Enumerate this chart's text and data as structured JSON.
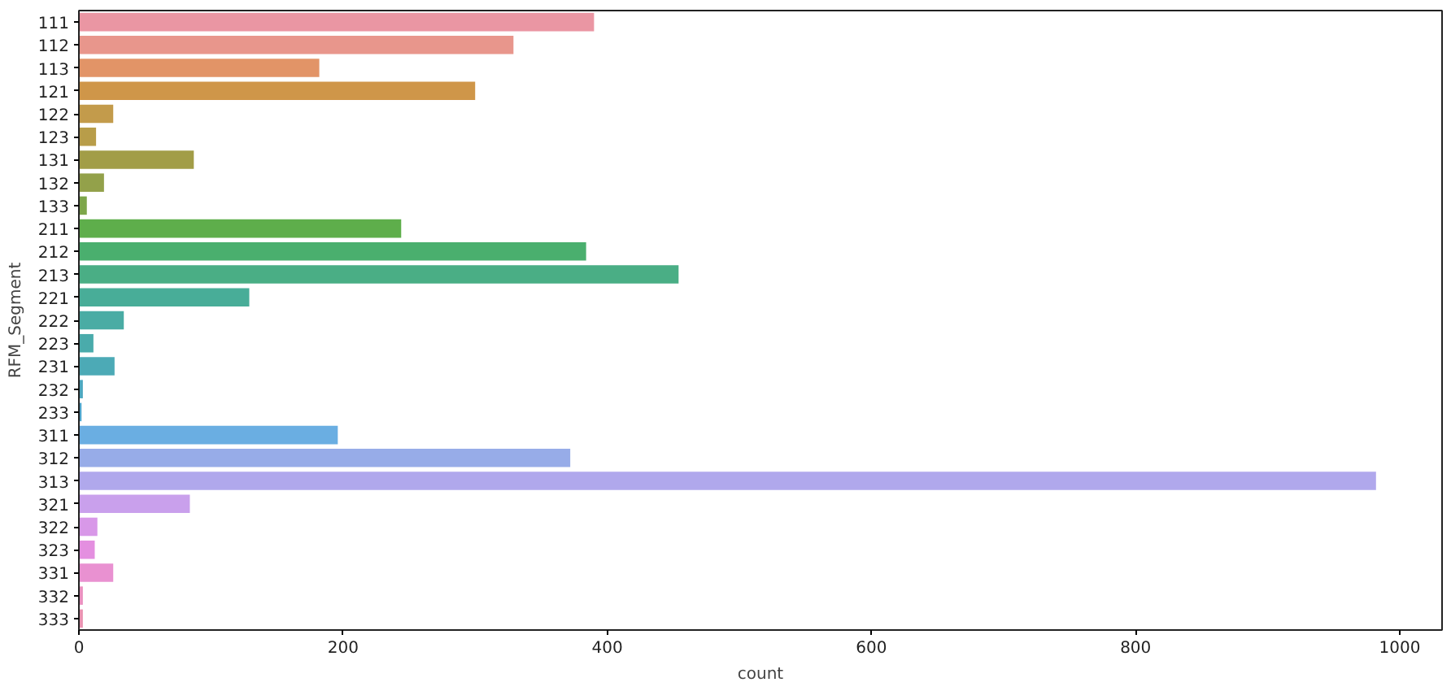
{
  "chart_data": {
    "type": "bar",
    "orientation": "horizontal",
    "xlabel": "count",
    "ylabel": "RFM_Segment",
    "categories": [
      "111",
      "112",
      "113",
      "121",
      "122",
      "123",
      "131",
      "132",
      "133",
      "211",
      "212",
      "213",
      "221",
      "222",
      "223",
      "231",
      "232",
      "233",
      "311",
      "312",
      "313",
      "321",
      "322",
      "323",
      "331",
      "332",
      "333"
    ],
    "values": [
      390,
      329,
      182,
      300,
      26,
      13,
      87,
      19,
      6,
      244,
      384,
      454,
      129,
      34,
      11,
      27,
      3,
      2,
      196,
      372,
      982,
      84,
      14,
      12,
      26,
      3,
      3
    ],
    "colors": [
      "#ea96a3",
      "#e8968c",
      "#e29467",
      "#cf9649",
      "#c39b4b",
      "#b89d49",
      "#a29d47",
      "#93a14a",
      "#7da64a",
      "#5eae4b",
      "#4aaf6e",
      "#4aae85",
      "#48ad98",
      "#4aaca4",
      "#4aabab",
      "#4caab6",
      "#4da8c0",
      "#4ea5cc",
      "#6aaee2",
      "#97ace8",
      "#b0a8ec",
      "#c9a0ec",
      "#d898e8",
      "#e48fe0",
      "#e991d1",
      "#ea91c0",
      "#ea93b2"
    ],
    "xlim": [
      0,
      1032
    ],
    "xticks": [
      0,
      200,
      400,
      600,
      800,
      1000
    ],
    "grid": false
  }
}
